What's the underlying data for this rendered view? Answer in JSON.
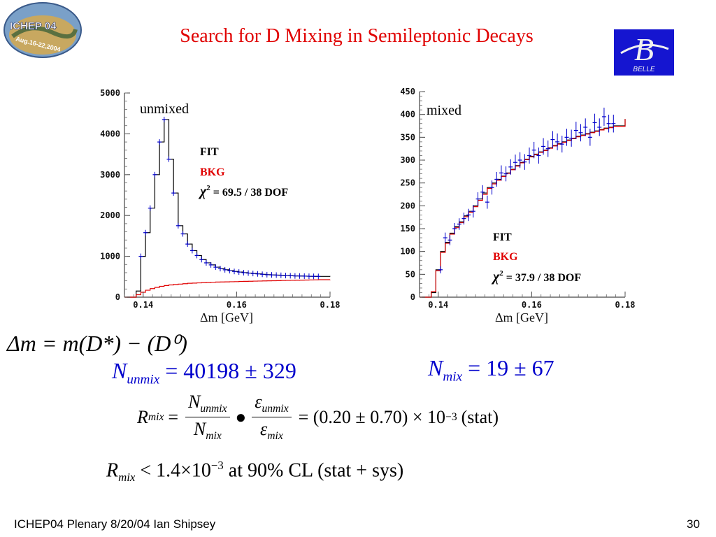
{
  "title": "Search for D Mixing in Semileptonic Decays",
  "logos": {
    "ichep_text": "ICHEP 04",
    "ichep_sub": "Aug.16-22,2004",
    "belle_letter": "B",
    "belle_text": "BELLE"
  },
  "colors": {
    "title": "#e00000",
    "fit": "#000000",
    "bkg": "#e00000",
    "data": "#0000cc"
  },
  "chart_data": [
    {
      "type": "line",
      "panel_label": "unmixed",
      "xlabel": "Δm [GeV]",
      "x_ticks": [
        "0.14",
        "0.16",
        "0.18"
      ],
      "y_ticks": [
        "0",
        "1000",
        "2000",
        "3000",
        "4000",
        "5000"
      ],
      "xlim": [
        0.136,
        0.18
      ],
      "ylim": [
        0,
        5000
      ],
      "legend": {
        "fit": "FIT",
        "bkg": "BKG",
        "chi2_symbol": "χ",
        "chi2_exp": "2",
        "chi2_text": "= 69.5 / 38 DOF"
      },
      "series": [
        {
          "role": "fit",
          "x": [
            0.136,
            0.1385,
            0.1395,
            0.1405,
            0.1415,
            0.1425,
            0.1435,
            0.1445,
            0.1455,
            0.1465,
            0.1475,
            0.1485,
            0.1495,
            0.1505,
            0.1515,
            0.1525,
            0.1535,
            0.1545,
            0.1555,
            0.1565,
            0.1575,
            0.1585,
            0.1595,
            0.1605,
            0.1615,
            0.1625,
            0.1635,
            0.1645,
            0.1655,
            0.1665,
            0.1675,
            0.1685,
            0.1695,
            0.1705,
            0.1715,
            0.1725,
            0.1735,
            0.1745,
            0.1755,
            0.1765,
            0.1775,
            0.18
          ],
          "y": [
            0,
            150,
            1000,
            1580,
            2180,
            3000,
            3800,
            4350,
            3380,
            2550,
            1750,
            1550,
            1300,
            1140,
            1020,
            920,
            840,
            790,
            735,
            700,
            670,
            650,
            630,
            615,
            600,
            590,
            580,
            570,
            560,
            550,
            545,
            540,
            535,
            530,
            525,
            520,
            518,
            515,
            512,
            510,
            508,
            505
          ]
        },
        {
          "role": "bkg",
          "x": [
            0.136,
            0.1385,
            0.1395,
            0.1405,
            0.1415,
            0.1425,
            0.1435,
            0.1445,
            0.1455,
            0.1465,
            0.1475,
            0.1485,
            0.1495,
            0.1505,
            0.1515,
            0.1525,
            0.1535,
            0.1545,
            0.1555,
            0.1565,
            0.1575,
            0.1585,
            0.1595,
            0.1605,
            0.1615,
            0.1625,
            0.1635,
            0.1645,
            0.1655,
            0.1665,
            0.1675,
            0.1685,
            0.1695,
            0.1705,
            0.1715,
            0.1725,
            0.1735,
            0.1745,
            0.1755,
            0.1765,
            0.1775,
            0.18
          ],
          "y": [
            0,
            60,
            120,
            170,
            210,
            240,
            265,
            285,
            300,
            310,
            320,
            330,
            340,
            345,
            350,
            355,
            360,
            365,
            370,
            372,
            375,
            378,
            380,
            385,
            388,
            390,
            393,
            395,
            398,
            400,
            403,
            405,
            408,
            410,
            412,
            415,
            418,
            420,
            423,
            425,
            428,
            430
          ]
        },
        {
          "role": "data",
          "x": [
            0.1395,
            0.1405,
            0.1415,
            0.1425,
            0.1435,
            0.1445,
            0.1455,
            0.1465,
            0.1475,
            0.1485,
            0.1495,
            0.1505,
            0.1515,
            0.1525,
            0.1535,
            0.1545,
            0.1555,
            0.1565,
            0.1575,
            0.1585,
            0.1595,
            0.1605,
            0.1615,
            0.1625,
            0.1635,
            0.1645,
            0.1655,
            0.1665,
            0.1675,
            0.1685,
            0.1695,
            0.1705,
            0.1715,
            0.1725,
            0.1735,
            0.1745,
            0.1755,
            0.1765,
            0.1775
          ],
          "y": [
            1000,
            1580,
            2180,
            3000,
            3800,
            4350,
            3380,
            2550,
            1750,
            1550,
            1300,
            1140,
            1020,
            920,
            840,
            790,
            735,
            700,
            670,
            650,
            630,
            615,
            600,
            590,
            580,
            570,
            560,
            550,
            545,
            540,
            535,
            530,
            525,
            520,
            518,
            515,
            512,
            510,
            508
          ]
        }
      ]
    },
    {
      "type": "line",
      "panel_label": "mixed",
      "xlabel": "Δm [GeV]",
      "x_ticks": [
        "0.14",
        "0.16",
        "0.18"
      ],
      "y_ticks": [
        "0",
        "50",
        "100",
        "150",
        "200",
        "250",
        "300",
        "350",
        "400",
        "450"
      ],
      "xlim": [
        0.136,
        0.18
      ],
      "ylim": [
        0,
        450
      ],
      "legend": {
        "fit": "FIT",
        "bkg": "BKG",
        "chi2_symbol": "χ",
        "chi2_exp": "2",
        "chi2_text": "= 37.9 / 38 DOF"
      },
      "series": [
        {
          "role": "fit",
          "x": [
            0.136,
            0.1385,
            0.1395,
            0.1405,
            0.1415,
            0.1425,
            0.1435,
            0.1445,
            0.1455,
            0.1465,
            0.1475,
            0.1485,
            0.1495,
            0.1505,
            0.1515,
            0.1525,
            0.1535,
            0.1545,
            0.1555,
            0.1565,
            0.1575,
            0.1585,
            0.1595,
            0.1605,
            0.1615,
            0.1625,
            0.1635,
            0.1645,
            0.1655,
            0.1665,
            0.1675,
            0.1685,
            0.1695,
            0.1705,
            0.1715,
            0.1725,
            0.1735,
            0.1745,
            0.1755,
            0.1765,
            0.1775,
            0.18
          ],
          "y": [
            0,
            10,
            60,
            100,
            120,
            140,
            155,
            165,
            178,
            188,
            200,
            215,
            228,
            240,
            250,
            258,
            265,
            272,
            280,
            288,
            295,
            302,
            308,
            313,
            318,
            322,
            327,
            332,
            336,
            340,
            344,
            348,
            352,
            355,
            358,
            361,
            364,
            367,
            370,
            372,
            375,
            390
          ]
        },
        {
          "role": "bkg",
          "x": [
            0.136,
            0.1385,
            0.1395,
            0.1405,
            0.1415,
            0.1425,
            0.1435,
            0.1445,
            0.1455,
            0.1465,
            0.1475,
            0.1485,
            0.1495,
            0.1505,
            0.1515,
            0.1525,
            0.1535,
            0.1545,
            0.1555,
            0.1565,
            0.1575,
            0.1585,
            0.1595,
            0.1605,
            0.1615,
            0.1625,
            0.1635,
            0.1645,
            0.1655,
            0.1665,
            0.1675,
            0.1685,
            0.1695,
            0.1705,
            0.1715,
            0.1725,
            0.1735,
            0.1745,
            0.1755,
            0.1765,
            0.1775,
            0.18
          ],
          "y": [
            0,
            12,
            58,
            98,
            118,
            138,
            152,
            163,
            176,
            186,
            198,
            212,
            225,
            238,
            248,
            256,
            264,
            271,
            279,
            287,
            294,
            301,
            307,
            312,
            317,
            321,
            326,
            331,
            335,
            339,
            343,
            347,
            351,
            354,
            357,
            360,
            363,
            366,
            369,
            371,
            374,
            390
          ]
        },
        {
          "role": "data",
          "x": [
            0.1405,
            0.1415,
            0.1425,
            0.1435,
            0.1445,
            0.1455,
            0.1465,
            0.1475,
            0.1485,
            0.1495,
            0.1505,
            0.1515,
            0.1525,
            0.1535,
            0.1545,
            0.1555,
            0.1565,
            0.1575,
            0.1585,
            0.1595,
            0.1605,
            0.1615,
            0.1625,
            0.1635,
            0.1645,
            0.1655,
            0.1665,
            0.1675,
            0.1685,
            0.1695,
            0.1705,
            0.1715,
            0.1725,
            0.1735,
            0.1745,
            0.1755,
            0.1765,
            0.1775
          ],
          "y": [
            60,
            130,
            125,
            150,
            160,
            172,
            180,
            188,
            215,
            230,
            208,
            240,
            258,
            272,
            270,
            285,
            295,
            300,
            296,
            310,
            322,
            310,
            330,
            325,
            345,
            340,
            335,
            350,
            348,
            365,
            360,
            372,
            350,
            382,
            372,
            395,
            380,
            380
          ]
        }
      ]
    }
  ],
  "equations": {
    "dm_def": "Δm = m(D*) − (D⁰)",
    "n_unmix_sym": "N",
    "n_unmix_sub": "unmix",
    "n_unmix_val": "= 40198 ± 329",
    "n_mix_sym": "N",
    "n_mix_sub": "mix",
    "n_mix_val": "= 19 ± 67",
    "r_mix_sym": "R",
    "r_mix_sub": "mix",
    "r_mix_result": "= (0.20 ± 0.70) × 10",
    "r_mix_exp": "−3",
    "r_mix_stat": "(stat)",
    "limit_text": "< 1.4×10",
    "limit_exp": "−3",
    "limit_tail": "at 90% CL (stat + sys)"
  },
  "footer": "ICHEP04 Plenary 8/20/04 Ian Shipsey",
  "page_number": "30"
}
